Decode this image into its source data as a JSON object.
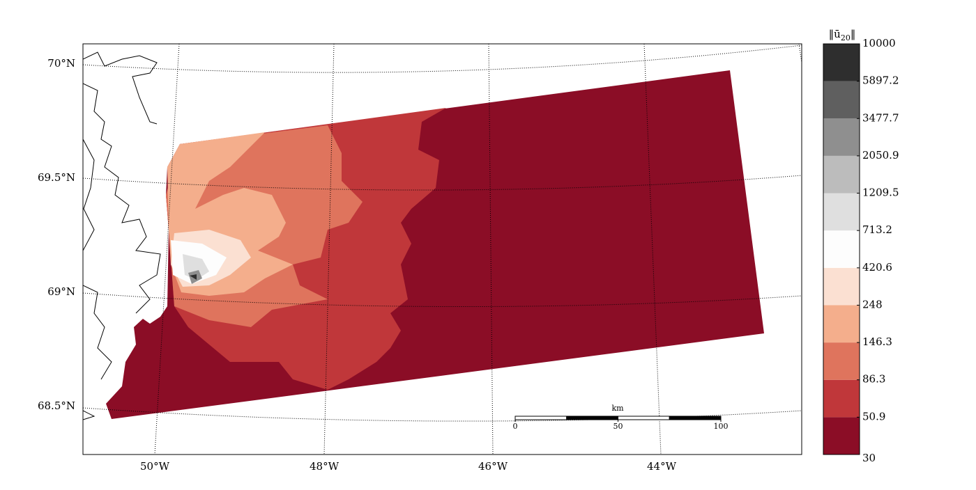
{
  "map": {
    "lat_labels": [
      "70°N",
      "69.5°N",
      "69°N",
      "68.5°N"
    ],
    "lon_labels": [
      "50°W",
      "48°W",
      "46°W",
      "44°W"
    ]
  },
  "colorbar": {
    "title": {
      "prefix": "‖ū",
      "subscript": "20",
      "suffix": "‖"
    },
    "levels": [
      30,
      50.9,
      86.3,
      146.3,
      248,
      420.6,
      713.2,
      1209.5,
      2050.9,
      3477.7,
      5897.2,
      10000
    ],
    "colors": [
      "#8b0d26",
      "#c0373a",
      "#df745d",
      "#f4ae8c",
      "#fbe0d2",
      "#fdfdfd",
      "#dfdfdf",
      "#bcbcbc",
      "#8f8f8f",
      "#5f5f5f",
      "#2e2e2e"
    ]
  },
  "scale_bar": {
    "unit": "km",
    "ticks": [
      0,
      50,
      100
    ]
  }
}
